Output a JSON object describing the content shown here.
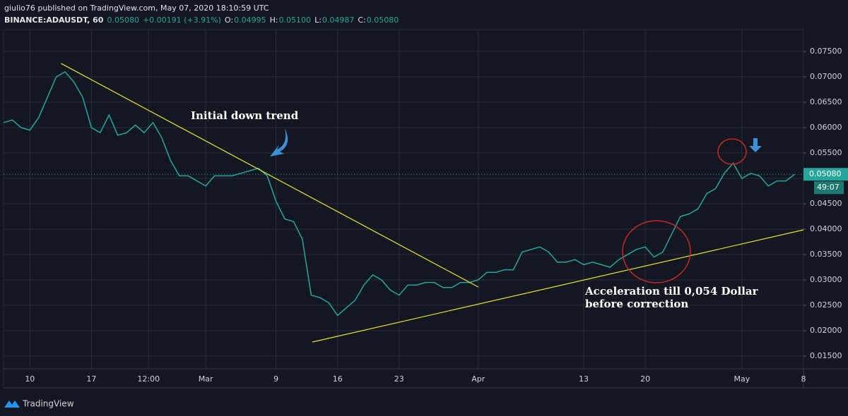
{
  "header": {
    "publisher": "giulio76 published on TradingView.com, May 07, 2020 18:10:59 UTC",
    "symbol": "BINANCE:ADAUSDT, 60",
    "price": "0.05080",
    "change": "+0.00191 (+3.91%)",
    "open_label": "O:",
    "open": "0.04995",
    "high_label": "H:",
    "high": "0.05100",
    "low_label": "L:",
    "low": "0.04987",
    "close_label": "C:",
    "close": "0.05080"
  },
  "footer": {
    "brand": "TradingView"
  },
  "chart_data": {
    "type": "line",
    "color": "#26a69a",
    "x": [
      "2020-02-07",
      "2020-02-08",
      "2020-02-09",
      "2020-02-10",
      "2020-02-11",
      "2020-02-12",
      "2020-02-13",
      "2020-02-14",
      "2020-02-15",
      "2020-02-16",
      "2020-02-17",
      "2020-02-18",
      "2020-02-19",
      "2020-02-20",
      "2020-02-21",
      "2020-02-22",
      "2020-02-23",
      "2020-02-24",
      "2020-02-25",
      "2020-02-26",
      "2020-02-27",
      "2020-02-28",
      "2020-02-29",
      "2020-03-01",
      "2020-03-02",
      "2020-03-03",
      "2020-03-04",
      "2020-03-05",
      "2020-03-06",
      "2020-03-07",
      "2020-03-08",
      "2020-03-09",
      "2020-03-10",
      "2020-03-11",
      "2020-03-12",
      "2020-03-13",
      "2020-03-14",
      "2020-03-15",
      "2020-03-16",
      "2020-03-17",
      "2020-03-18",
      "2020-03-19",
      "2020-03-20",
      "2020-03-21",
      "2020-03-22",
      "2020-03-23",
      "2020-03-24",
      "2020-03-25",
      "2020-03-26",
      "2020-03-27",
      "2020-03-28",
      "2020-03-29",
      "2020-03-30",
      "2020-03-31",
      "2020-04-01",
      "2020-04-02",
      "2020-04-03",
      "2020-04-04",
      "2020-04-05",
      "2020-04-06",
      "2020-04-07",
      "2020-04-08",
      "2020-04-09",
      "2020-04-10",
      "2020-04-11",
      "2020-04-12",
      "2020-04-13",
      "2020-04-14",
      "2020-04-15",
      "2020-04-16",
      "2020-04-17",
      "2020-04-18",
      "2020-04-19",
      "2020-04-20",
      "2020-04-21",
      "2020-04-22",
      "2020-04-23",
      "2020-04-24",
      "2020-04-25",
      "2020-04-26",
      "2020-04-27",
      "2020-04-28",
      "2020-04-29",
      "2020-04-30",
      "2020-05-01",
      "2020-05-02",
      "2020-05-03",
      "2020-05-04",
      "2020-05-05",
      "2020-05-06",
      "2020-05-07"
    ],
    "values": [
      0.061,
      0.0615,
      0.06,
      0.0595,
      0.062,
      0.066,
      0.07,
      0.071,
      0.069,
      0.066,
      0.06,
      0.059,
      0.0625,
      0.0585,
      0.059,
      0.0605,
      0.059,
      0.061,
      0.058,
      0.0535,
      0.0505,
      0.0505,
      0.0495,
      0.0485,
      0.0505,
      0.0505,
      0.0505,
      0.051,
      0.0515,
      0.052,
      0.0505,
      0.0455,
      0.042,
      0.0415,
      0.038,
      0.027,
      0.0265,
      0.0255,
      0.023,
      0.0245,
      0.026,
      0.029,
      0.031,
      0.03,
      0.028,
      0.027,
      0.029,
      0.029,
      0.0295,
      0.0295,
      0.0285,
      0.0285,
      0.0295,
      0.0295,
      0.03,
      0.0315,
      0.0315,
      0.032,
      0.032,
      0.0355,
      0.036,
      0.0365,
      0.0355,
      0.0335,
      0.0335,
      0.034,
      0.033,
      0.0335,
      0.033,
      0.0325,
      0.034,
      0.035,
      0.036,
      0.0365,
      0.0345,
      0.0355,
      0.039,
      0.0425,
      0.043,
      0.044,
      0.047,
      0.048,
      0.051,
      0.053,
      0.05,
      0.051,
      0.0505,
      0.0485,
      0.0495,
      0.0495,
      0.0508
    ],
    "xlim": [
      "2020-02-07",
      "2020-05-08"
    ],
    "xticks": [
      {
        "value": "2020-02-10",
        "label": "10"
      },
      {
        "value": "2020-02-17",
        "label": "17"
      },
      {
        "value": "2020-02-23T12:00",
        "label": "12:00"
      },
      {
        "value": "2020-03-01",
        "label": "Mar"
      },
      {
        "value": "2020-03-09",
        "label": "9"
      },
      {
        "value": "2020-03-16",
        "label": "16"
      },
      {
        "value": "2020-03-23",
        "label": "23"
      },
      {
        "value": "2020-04-01",
        "label": "Apr"
      },
      {
        "value": "2020-04-13",
        "label": "13"
      },
      {
        "value": "2020-04-20",
        "label": "20"
      },
      {
        "value": "2020-05-01",
        "label": "May"
      },
      {
        "value": "2020-05-08",
        "label": "8"
      }
    ],
    "ylim": [
      0.0125,
      0.0793
    ],
    "yticks": [
      {
        "value": 0.015,
        "label": "0.01500"
      },
      {
        "value": 0.02,
        "label": "0.02000"
      },
      {
        "value": 0.025,
        "label": "0.02500"
      },
      {
        "value": 0.03,
        "label": "0.03000"
      },
      {
        "value": 0.035,
        "label": "0.03500"
      },
      {
        "value": 0.04,
        "label": "0.04000"
      },
      {
        "value": 0.045,
        "label": "0.04500"
      },
      {
        "value": 0.05,
        "label": "0.05000"
      },
      {
        "value": 0.055,
        "label": "0.05500"
      },
      {
        "value": 0.06,
        "label": "0.06000"
      },
      {
        "value": 0.065,
        "label": "0.06500"
      },
      {
        "value": 0.07,
        "label": "0.07000"
      },
      {
        "value": 0.075,
        "label": "0.07500"
      }
    ],
    "grid": true,
    "last_price": {
      "value": 0.0508,
      "label": "0.05080"
    },
    "countdown": "49:07",
    "trendlines": [
      {
        "x": [
          "2020-02-13T13:00",
          "2020-04-01"
        ],
        "values": [
          0.07264,
          0.02861
        ],
        "color": "#e6e62e"
      },
      {
        "x": [
          "2020-03-13T03:00",
          "2020-05-08"
        ],
        "values": [
          0.01776,
          0.03986
        ],
        "color": "#e6e62e"
      }
    ],
    "annotations": [
      "Initial down trend",
      "Acceleration till 0,054 Dollar",
      "before correction"
    ]
  }
}
